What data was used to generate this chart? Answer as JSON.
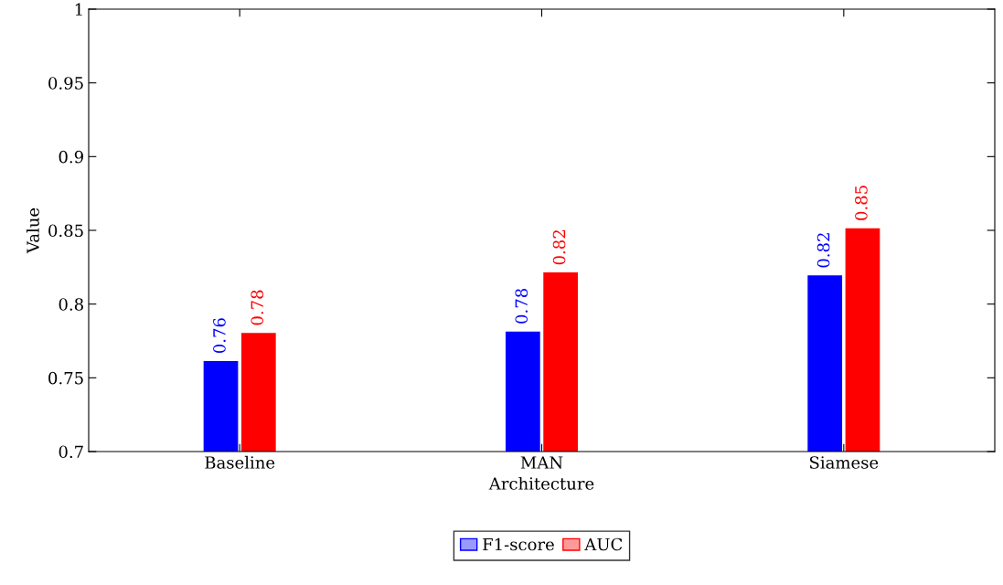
{
  "chart_data": {
    "type": "bar",
    "xlabel": "Architecture",
    "ylabel": "Value",
    "categories": [
      "Baseline",
      "MAN",
      "Siamese"
    ],
    "series": [
      {
        "name": "F1-score",
        "color": "#0000ff",
        "values": [
          0.761,
          0.781,
          0.819
        ],
        "value_labels": [
          "0.76",
          "0.78",
          "0.82"
        ]
      },
      {
        "name": "AUC",
        "color": "#ff0000",
        "values": [
          0.78,
          0.821,
          0.851
        ],
        "value_labels": [
          "0.78",
          "0.82",
          "0.85"
        ]
      }
    ],
    "ylim": [
      0.7,
      1
    ],
    "yticks": [
      0.7,
      0.75,
      0.8,
      0.85,
      0.9,
      0.95,
      1
    ],
    "grid": false,
    "legend": "bottom"
  }
}
